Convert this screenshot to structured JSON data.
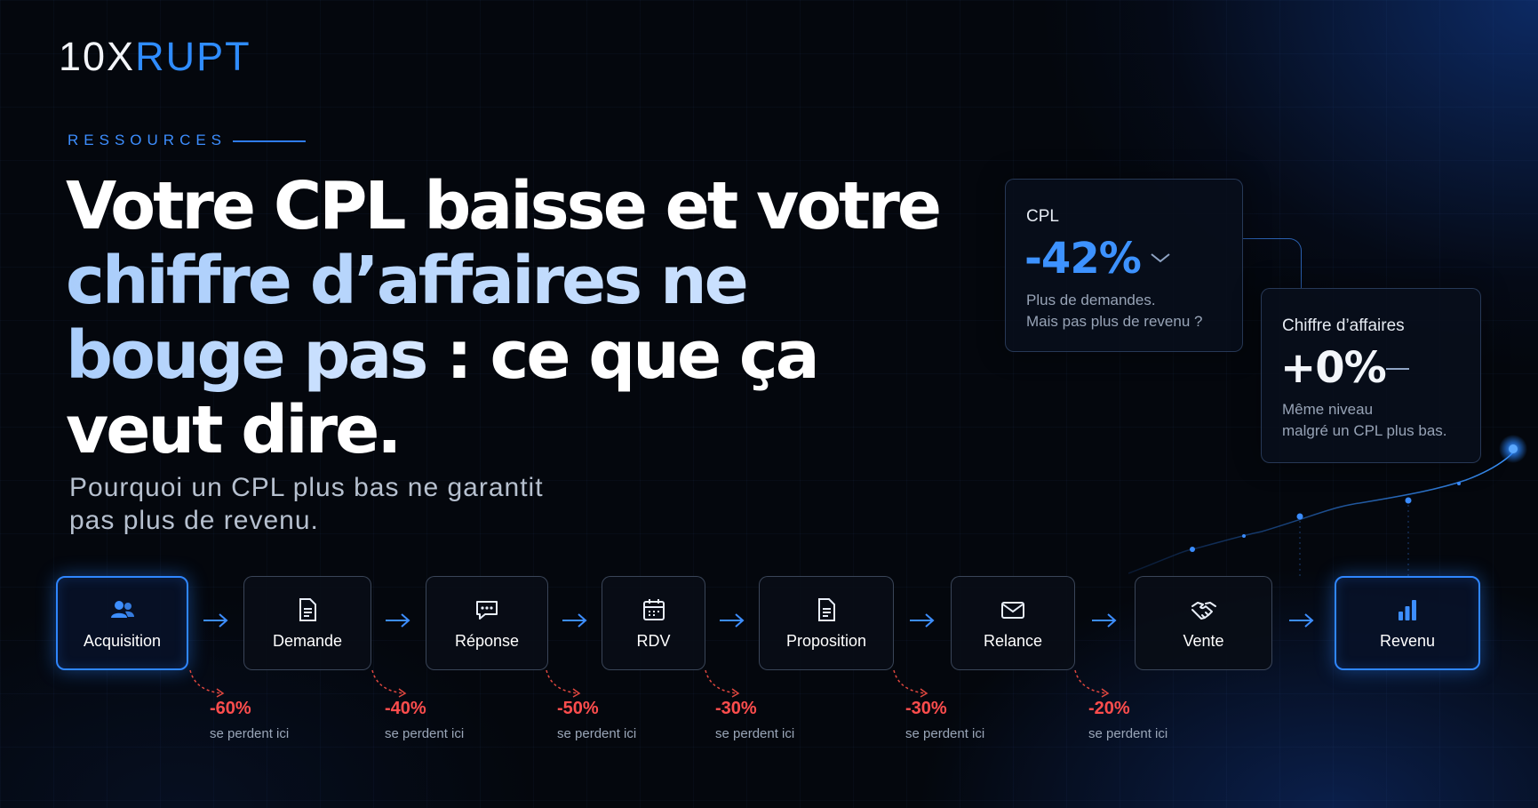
{
  "brand": {
    "logo_part1": "10X",
    "logo_part2": "RUPT"
  },
  "eyebrow": "RESSOURCES",
  "headline": {
    "line1": "Votre CPL baisse et votre",
    "line2": "chiffre d’affaires ne",
    "line3_blue": "bouge pas",
    "line3_white": " : ce que ça",
    "line4": "veut dire."
  },
  "subtitle": {
    "line1": "Pourquoi un CPL plus bas ne garantit",
    "line2": "pas plus de revenu."
  },
  "cards": {
    "cpl": {
      "title": "CPL",
      "value": "-42%",
      "desc1": "Plus de demandes.",
      "desc2": "Mais pas plus de revenu ?",
      "accent": "#3d92ff",
      "icon": "chevron-down-icon"
    },
    "ca": {
      "title": "Chiffre d’affaires",
      "value": "+0%",
      "desc1": "Même niveau",
      "desc2": "malgré un CPL plus bas.",
      "icon": "dash-icon"
    }
  },
  "funnel": {
    "steps": [
      {
        "label": "Acquisition",
        "icon": "users-icon",
        "highlight": true
      },
      {
        "label": "Demande",
        "icon": "document-icon",
        "highlight": false
      },
      {
        "label": "Réponse",
        "icon": "chat-bubble-icon",
        "highlight": false
      },
      {
        "label": "RDV",
        "icon": "calendar-icon",
        "highlight": false
      },
      {
        "label": "Proposition",
        "icon": "document-icon",
        "highlight": false
      },
      {
        "label": "Relance",
        "icon": "envelope-icon",
        "highlight": false
      },
      {
        "label": "Vente",
        "icon": "handshake-icon",
        "highlight": false
      },
      {
        "label": "Revenu",
        "icon": "bar-chart-icon",
        "highlight": true
      }
    ],
    "losses": [
      {
        "percent": "-60%",
        "text": "se perdent ici"
      },
      {
        "percent": "-40%",
        "text": "se perdent ici"
      },
      {
        "percent": "-50%",
        "text": "se perdent ici"
      },
      {
        "percent": "-30%",
        "text": "se perdent ici"
      },
      {
        "percent": "-30%",
        "text": "se perdent ici"
      },
      {
        "percent": "-20%",
        "text": "se perdent ici"
      }
    ]
  },
  "colors": {
    "accent": "#2f8cff",
    "loss": "#ff4d4d",
    "background": "#04070d"
  }
}
